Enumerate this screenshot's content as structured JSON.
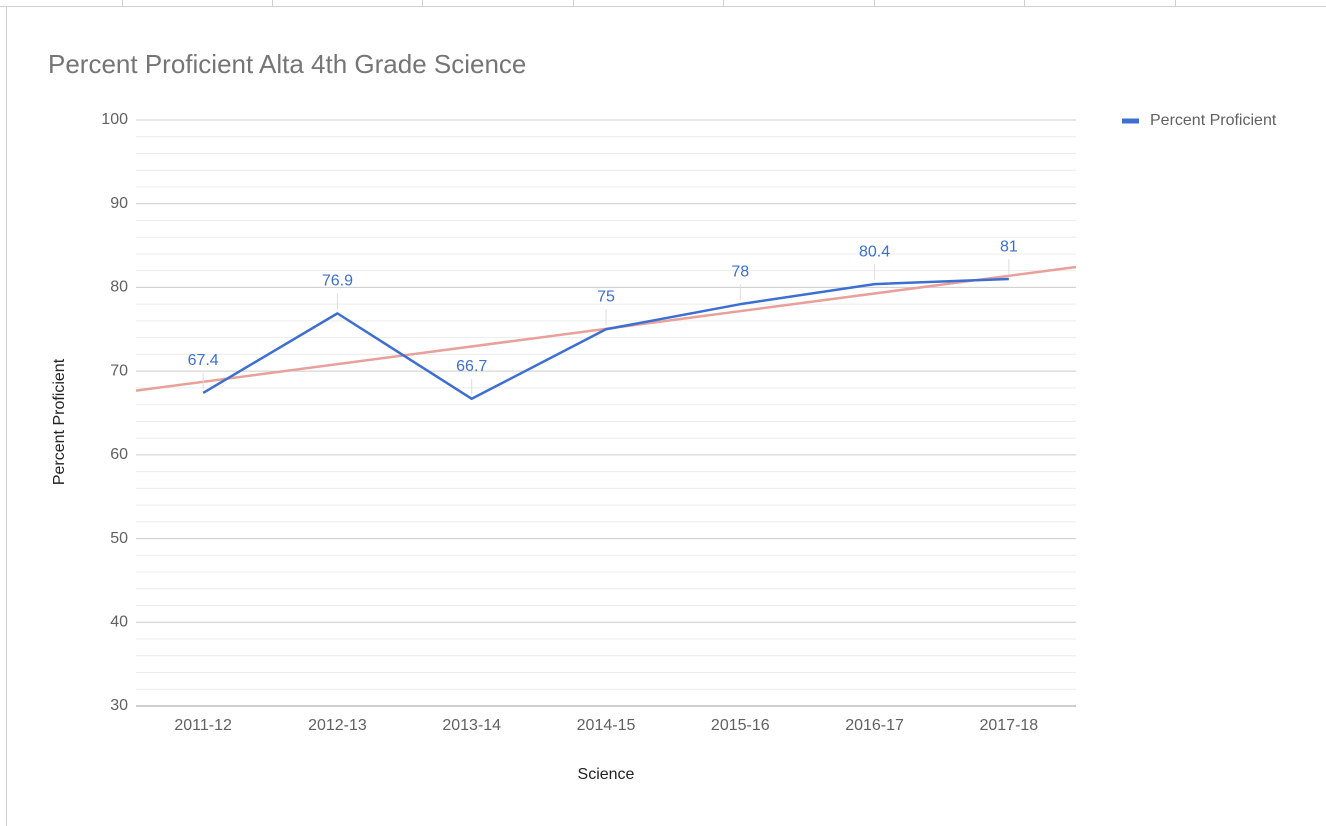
{
  "chart_data": {
    "type": "line",
    "title": "Percent Proficient Alta 4th Grade Science",
    "x_label": "Science",
    "y_label": "Percent Proficient",
    "categories": [
      "2011-12",
      "2012-13",
      "2013-14",
      "2014-15",
      "2015-16",
      "2016-17",
      "2017-18"
    ],
    "series": [
      {
        "name": "Percent Proficient",
        "color": "#3c6fd1",
        "values": [
          67.4,
          76.9,
          66.7,
          75,
          78,
          80.4,
          81
        ]
      }
    ],
    "ylim": [
      30,
      100
    ],
    "yticks": [
      30,
      40,
      50,
      60,
      70,
      80,
      90,
      100
    ],
    "grid": true,
    "minor_grid": true,
    "data_labels": true,
    "legend": "right",
    "trendline": {
      "type": "linear",
      "color": "#e8a09a"
    }
  }
}
